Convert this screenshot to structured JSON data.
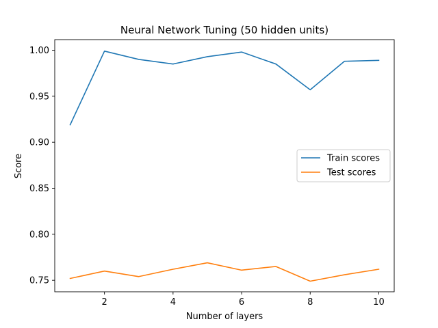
{
  "chart_data": {
    "type": "line",
    "title": "Neural Network Tuning (50 hidden units)",
    "xlabel": "Number of layers",
    "ylabel": "Score",
    "x": [
      1,
      2,
      3,
      4,
      5,
      6,
      7,
      8,
      9,
      10
    ],
    "xlim": [
      0.55,
      10.45
    ],
    "ylim": [
      0.7375,
      1.0115
    ],
    "xticks": [
      2,
      4,
      6,
      8,
      10
    ],
    "xtick_labels": [
      "2",
      "4",
      "6",
      "8",
      "10"
    ],
    "yticks": [
      0.75,
      0.8,
      0.85,
      0.9,
      0.95,
      1.0
    ],
    "ytick_labels": [
      "0.75",
      "0.80",
      "0.85",
      "0.90",
      "0.95",
      "1.00"
    ],
    "grid": false,
    "legend_position": "center-right",
    "series": [
      {
        "name": "Train scores",
        "color": "#1f77b4",
        "values": [
          0.919,
          0.999,
          0.99,
          0.985,
          0.993,
          0.998,
          0.985,
          0.957,
          0.988,
          0.989
        ]
      },
      {
        "name": "Test scores",
        "color": "#ff7f0e",
        "values": [
          0.752,
          0.76,
          0.754,
          0.762,
          0.769,
          0.761,
          0.765,
          0.749,
          0.756,
          0.762
        ]
      }
    ]
  }
}
